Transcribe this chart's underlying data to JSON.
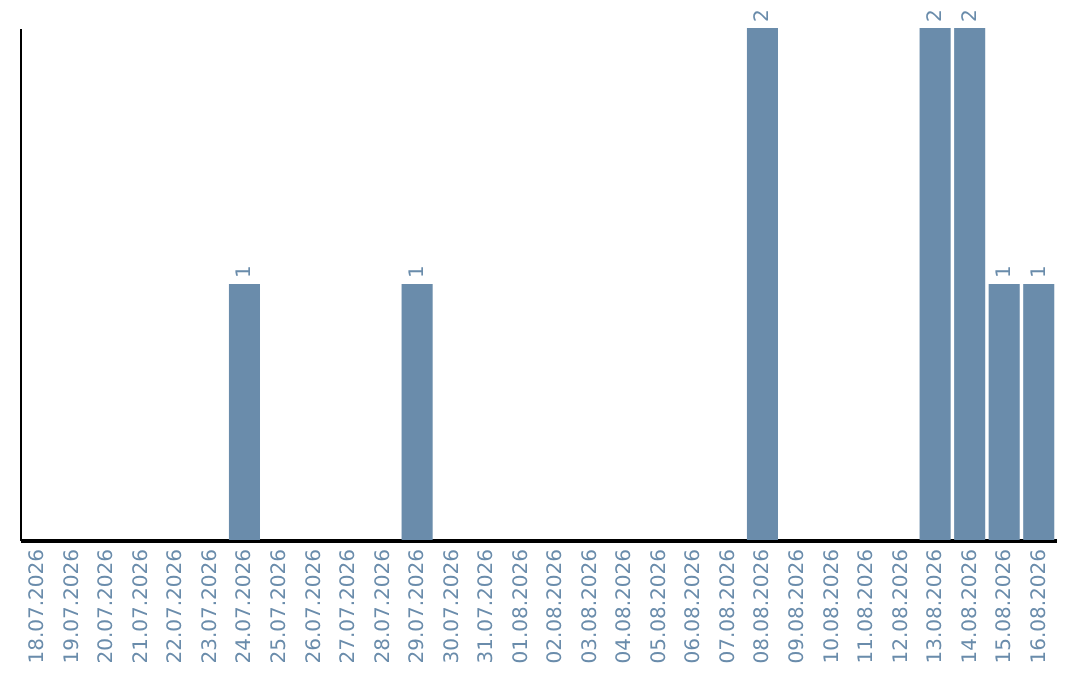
{
  "chart_data": {
    "type": "bar",
    "categories": [
      "18.07.2026",
      "19.07.2026",
      "20.07.2026",
      "21.07.2026",
      "22.07.2026",
      "23.07.2026",
      "24.07.2026",
      "25.07.2026",
      "26.07.2026",
      "27.07.2026",
      "28.07.2026",
      "29.07.2026",
      "30.07.2026",
      "31.07.2026",
      "01.08.2026",
      "02.08.2026",
      "03.08.2026",
      "04.08.2026",
      "05.08.2026",
      "06.08.2026",
      "07.08.2026",
      "08.08.2026",
      "09.08.2026",
      "10.08.2026",
      "11.08.2026",
      "12.08.2026",
      "13.08.2026",
      "14.08.2026",
      "15.08.2026",
      "16.08.2026"
    ],
    "values": [
      0,
      0,
      0,
      0,
      0,
      0,
      1,
      0,
      0,
      0,
      0,
      1,
      0,
      0,
      0,
      0,
      0,
      0,
      0,
      0,
      0,
      2,
      0,
      0,
      0,
      0,
      2,
      2,
      1,
      1
    ],
    "value_labels": [
      null,
      null,
      null,
      null,
      null,
      null,
      "1",
      null,
      null,
      null,
      null,
      "1",
      null,
      null,
      null,
      null,
      null,
      null,
      null,
      null,
      null,
      "2",
      null,
      null,
      null,
      null,
      "2",
      "2",
      "1",
      "1"
    ],
    "color": "#6a8cab",
    "ylim": [
      0,
      2
    ],
    "tick_labels": "x"
  }
}
